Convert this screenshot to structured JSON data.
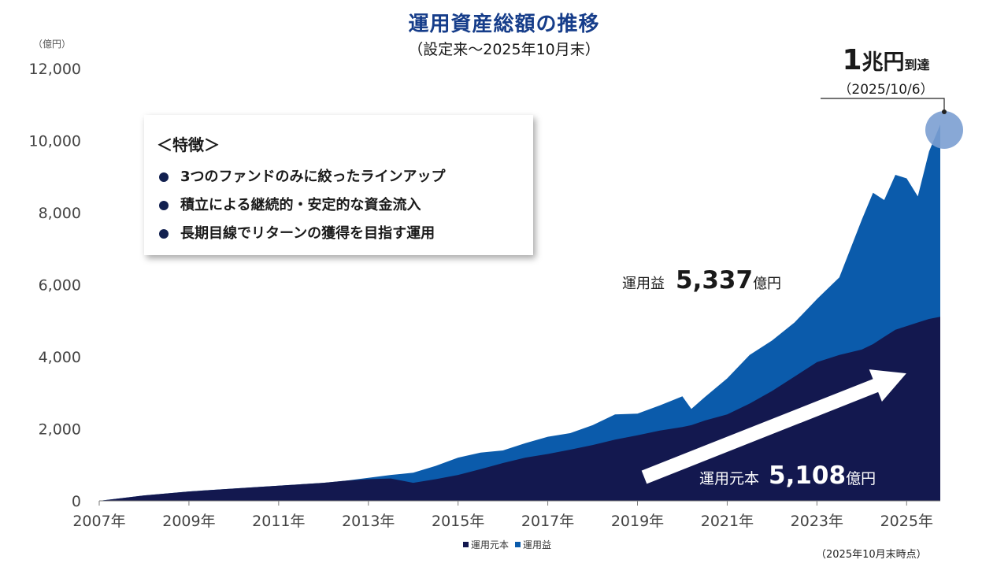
{
  "header": {
    "title": "運用資産総額の推移",
    "subtitle": "（設定来～2025年10月末）",
    "unit": "（億円）"
  },
  "features": {
    "title": "＜特徴＞",
    "items": [
      "3つのファンドのみに絞ったラインアップ",
      "積立による継続的・安定的な資金流入",
      "長期目線でリターンの獲得を目指す運用"
    ]
  },
  "annotations": {
    "profit_label": "運用益",
    "profit_value": "5,337",
    "profit_unit": "億円",
    "principal_label": "運用元本",
    "principal_value": "5,108",
    "principal_unit": "億円",
    "milestone_big": "1",
    "milestone_mid": "兆円",
    "milestone_small": "到達",
    "milestone_date": "（2025/10/6）"
  },
  "legend": {
    "principal": "運用元本",
    "profit": "運用益"
  },
  "note": "（2025年10月末時点）",
  "colors": {
    "principal": "#13184f",
    "profit": "#0b5bab",
    "milestone_circle": "#7b9fd2",
    "title": "#163d8a"
  },
  "chart_data": {
    "type": "area",
    "stacked": true,
    "xlabel": "",
    "ylabel": "",
    "ylim": [
      0,
      12000
    ],
    "yticks": [
      "0",
      "2,000",
      "4,000",
      "6,000",
      "8,000",
      "10,000",
      "12,000"
    ],
    "xticks": [
      "2007年",
      "2009年",
      "2011年",
      "2013年",
      "2015年",
      "2017年",
      "2019年",
      "2021年",
      "2023年",
      "2025年"
    ],
    "grid": false,
    "legend_position": "bottom",
    "x": [
      2007.0,
      2008.0,
      2009.0,
      2010.0,
      2011.0,
      2012.0,
      2012.5,
      2013.0,
      2013.5,
      2014.0,
      2014.5,
      2015.0,
      2015.5,
      2016.0,
      2016.5,
      2017.0,
      2017.5,
      2018.0,
      2018.5,
      2019.0,
      2019.5,
      2020.0,
      2020.2,
      2020.5,
      2021.0,
      2021.5,
      2022.0,
      2022.5,
      2023.0,
      2023.5,
      2024.0,
      2024.25,
      2024.5,
      2024.75,
      2025.0,
      2025.25,
      2025.5,
      2025.75
    ],
    "series": [
      {
        "name": "運用元本",
        "values": [
          0,
          150,
          260,
          340,
          420,
          500,
          560,
          600,
          620,
          500,
          600,
          720,
          880,
          1050,
          1200,
          1300,
          1420,
          1550,
          1700,
          1820,
          1950,
          2050,
          2100,
          2230,
          2400,
          2700,
          3050,
          3450,
          3850,
          4050,
          4200,
          4350,
          4550,
          4750,
          4850,
          4950,
          5050,
          5108
        ]
      },
      {
        "name": "運用益",
        "values": [
          0,
          0,
          0,
          0,
          0,
          0,
          0,
          40,
          100,
          280,
          370,
          480,
          460,
          350,
          400,
          480,
          460,
          550,
          700,
          600,
          700,
          850,
          450,
          650,
          1000,
          1350,
          1400,
          1500,
          1750,
          2150,
          3600,
          4200,
          3800,
          4300,
          4100,
          3500,
          4650,
          5337
        ]
      }
    ]
  }
}
